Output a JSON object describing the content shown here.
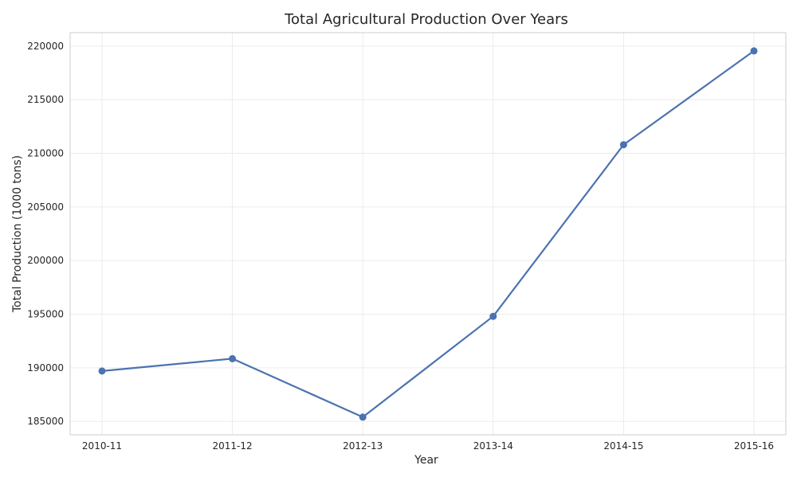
{
  "chart_data": {
    "type": "line",
    "title": "Total Agricultural Production Over Years",
    "xlabel": "Year",
    "ylabel": "Total Production (1000 tons)",
    "categories": [
      "2010-11",
      "2011-12",
      "2012-13",
      "2013-14",
      "2014-15",
      "2015-16"
    ],
    "series": [
      {
        "values": [
          189700,
          190850,
          185400,
          194800,
          210800,
          219550
        ]
      }
    ],
    "y_ticks": [
      185000,
      190000,
      195000,
      200000,
      205000,
      210000,
      215000,
      220000
    ],
    "ylim": [
      183750,
      221250
    ],
    "grid": true,
    "legend": "none",
    "colors": {
      "line": "#4c72b0",
      "grid": "#ebebeb",
      "axes_edge": "#cccccc",
      "text": "#262626"
    }
  }
}
